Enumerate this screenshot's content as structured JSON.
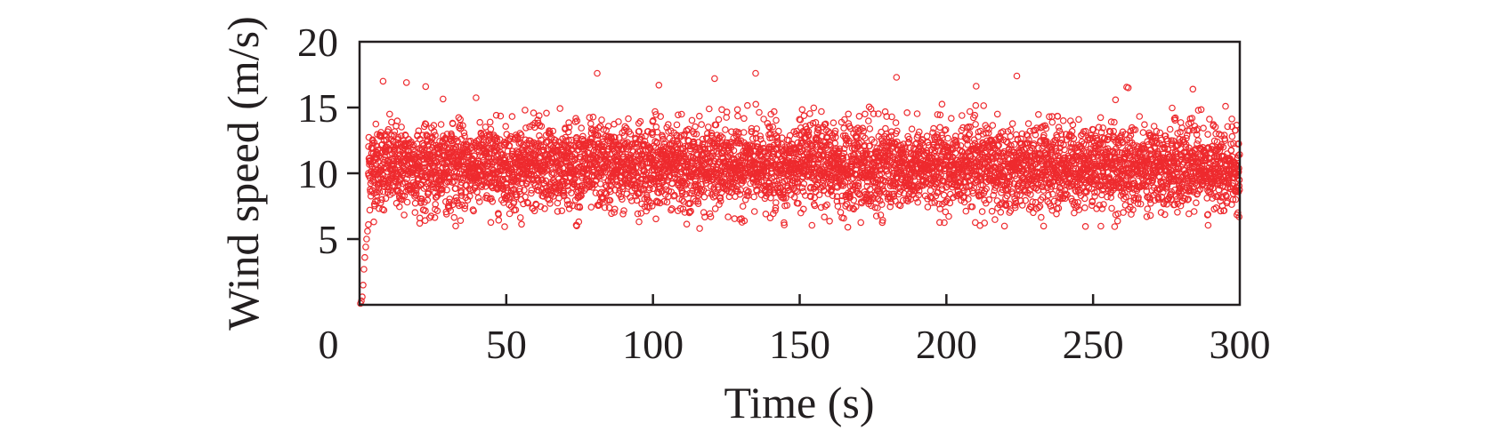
{
  "chart_data": {
    "type": "scatter",
    "title": "",
    "xlabel": "Time (s)",
    "ylabel": "Wind speed (m/s)",
    "xlim": [
      0,
      300
    ],
    "ylim": [
      0,
      20
    ],
    "x_ticks": [
      0,
      50,
      100,
      150,
      200,
      250,
      300
    ],
    "y_ticks": [
      5,
      10,
      15,
      20
    ],
    "grid": false,
    "legend": "none",
    "marker": "open-circle",
    "color": "#ee2a2e",
    "series": [
      {
        "ramp_up": {
          "x": [
            0.3,
            0.6,
            0.9,
            1.2,
            1.5,
            1.8,
            2.1,
            2.4,
            2.7,
            3.0
          ],
          "y": [
            0.1,
            0.3,
            0.6,
            1.5,
            2.7,
            3.6,
            4.4,
            5.0,
            5.6,
            6.1
          ]
        },
        "steady": {
          "x_start": 3,
          "x_end": 300,
          "step": 0.05,
          "mean": 10.5,
          "std": 1.6,
          "min": 5.8,
          "max": 17.6
        },
        "peaks": {
          "x": [
            8,
            16,
            81,
            102,
            121,
            135,
            183,
            224,
            262,
            284
          ],
          "y": [
            17.0,
            16.9,
            17.6,
            16.7,
            17.2,
            17.6,
            17.3,
            17.4,
            16.5,
            16.4
          ]
        }
      }
    ]
  }
}
